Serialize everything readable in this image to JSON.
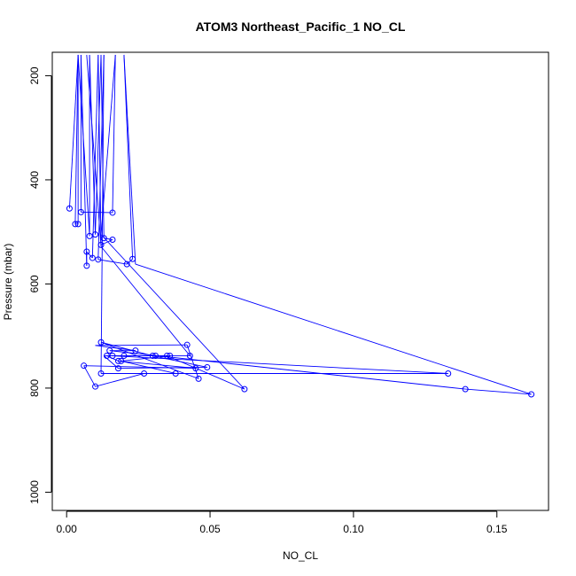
{
  "chart_data": {
    "type": "line",
    "title": "ATOM3 Northeast_Pacific_1 NO_CL",
    "xlabel": "NO_CL",
    "ylabel": "Pressure (mbar)",
    "xlim": [
      -0.005,
      0.168
    ],
    "ylim": [
      1035,
      155
    ],
    "y_reversed": true,
    "grid": false,
    "legend": "none",
    "line_color": "#0000ff",
    "x_ticks": [
      0.0,
      0.05,
      0.1,
      0.15
    ],
    "x_tick_labels": [
      "0.00",
      "0.05",
      "0.10",
      "0.15"
    ],
    "y_ticks": [
      200,
      400,
      600,
      800,
      1000
    ],
    "y_tick_labels": [
      "200",
      "400",
      "600",
      "800",
      "1000"
    ],
    "series": [
      {
        "values_x": [
          0.001,
          0.004,
          0.003,
          0.008,
          0.01,
          0.013,
          0.016,
          0.012,
          0.007,
          0.009,
          0.011,
          0.021,
          0.023,
          0.007,
          0.005,
          0.016,
          0.062,
          0.035,
          0.02,
          0.016,
          0.133,
          0.139,
          0.162,
          0.024,
          0.015,
          0.03,
          0.012,
          0.019,
          0.042,
          0.046,
          0.031,
          0.049,
          0.018,
          0.012,
          0.036,
          0.038,
          0.027,
          0.01,
          0.006,
          0.045,
          0.018,
          0.014,
          0.043
        ],
        "values_y": [
          455,
          485,
          485,
          508,
          505,
          512,
          515,
          525,
          538,
          550,
          553,
          562,
          552,
          565,
          462,
          463,
          802,
          738,
          738,
          738,
          772,
          802,
          812,
          728,
          728,
          738,
          712,
          748,
          717,
          782,
          738,
          760,
          762,
          772,
          738,
          772,
          772,
          797,
          757,
          762,
          748,
          738,
          738
        ],
        "path": [
          [
            0.001,
            455
          ],
          [
            0.004,
            160
          ],
          [
            0.004,
            485
          ],
          [
            0.003,
            485
          ],
          [
            0.004,
            160
          ],
          [
            0.008,
            508
          ],
          [
            0.008,
            160
          ],
          [
            0.01,
            505
          ],
          [
            0.012,
            160
          ],
          [
            0.013,
            512
          ],
          [
            0.016,
            515
          ],
          [
            0.012,
            525
          ],
          [
            0.011,
            160
          ],
          [
            0.009,
            550
          ],
          [
            0.007,
            538
          ],
          [
            0.007,
            565
          ],
          [
            0.005,
            160
          ],
          [
            0.005,
            462
          ],
          [
            0.016,
            463
          ],
          [
            0.017,
            160
          ],
          [
            0.012,
            505
          ],
          [
            0.062,
            802
          ],
          [
            0.035,
            738
          ],
          [
            0.02,
            738
          ],
          [
            0.016,
            738
          ],
          [
            0.133,
            772
          ],
          [
            0.012,
            772
          ],
          [
            0.013,
            160
          ],
          [
            0.011,
            553
          ],
          [
            0.021,
            562
          ],
          [
            0.023,
            552
          ],
          [
            0.02,
            160
          ],
          [
            0.024,
            562
          ],
          [
            0.162,
            812
          ],
          [
            0.139,
            802
          ],
          [
            0.015,
            728
          ],
          [
            0.024,
            728
          ],
          [
            0.01,
            718
          ],
          [
            0.042,
            717
          ],
          [
            0.046,
            782
          ],
          [
            0.012,
            712
          ],
          [
            0.03,
            738
          ],
          [
            0.049,
            760
          ],
          [
            0.018,
            762
          ],
          [
            0.013,
            738
          ],
          [
            0.036,
            738
          ],
          [
            0.019,
            748
          ],
          [
            0.038,
            772
          ],
          [
            0.027,
            772
          ],
          [
            0.01,
            797
          ],
          [
            0.006,
            757
          ],
          [
            0.045,
            762
          ],
          [
            0.018,
            748
          ],
          [
            0.014,
            738
          ],
          [
            0.043,
            738
          ],
          [
            0.012,
            528
          ],
          [
            0.007,
            160
          ]
        ]
      }
    ]
  }
}
